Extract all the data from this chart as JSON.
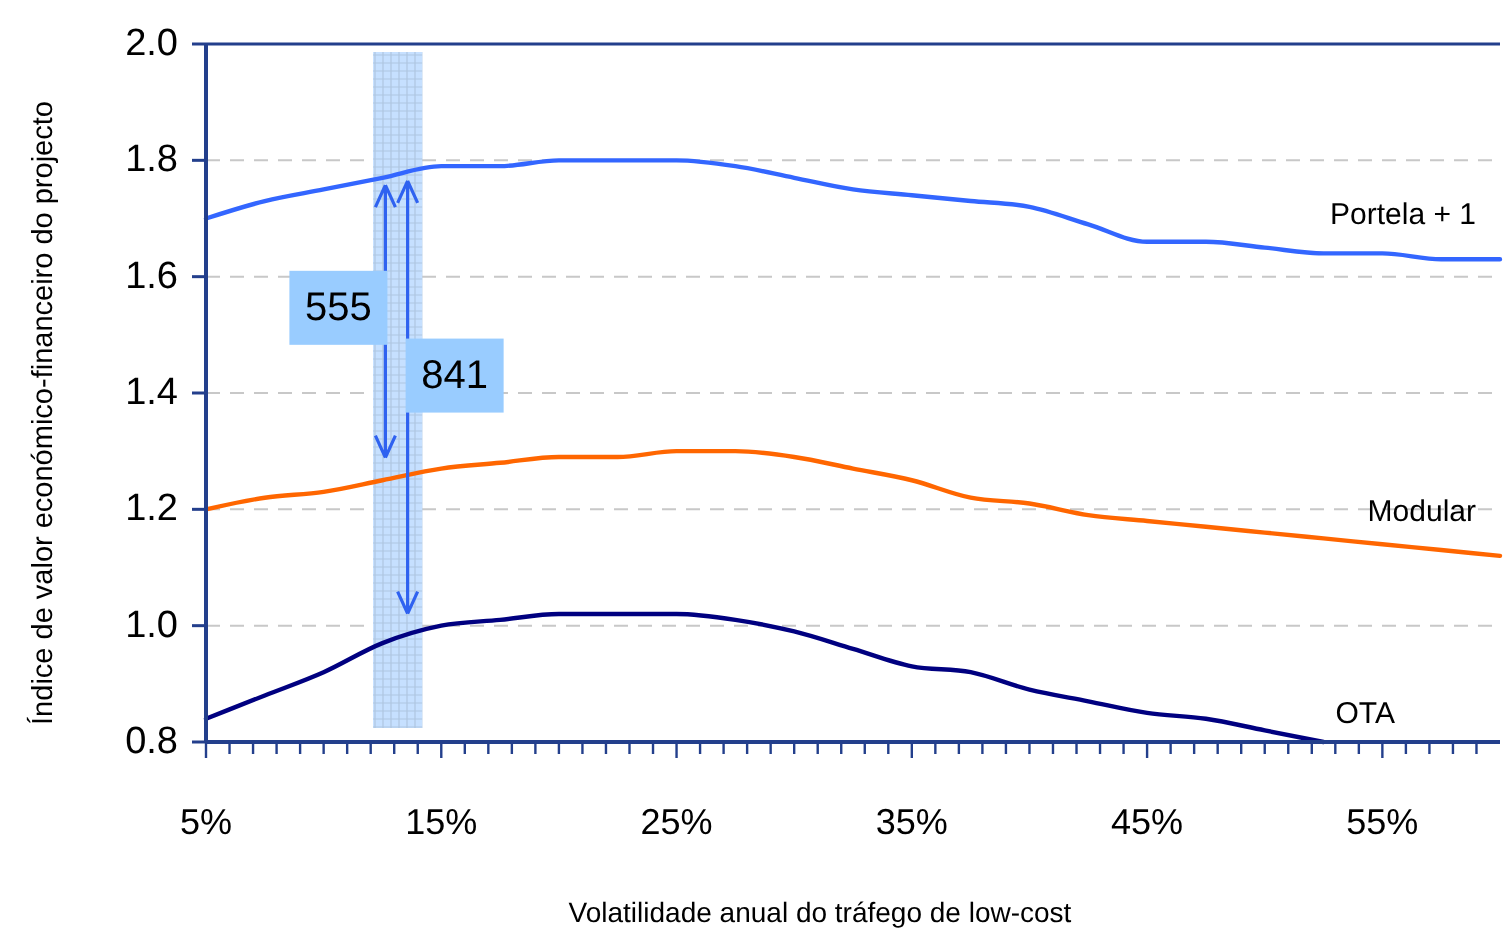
{
  "chart_data": {
    "type": "line",
    "xlabel": "Volatilidade anual do tráfego de low-cost",
    "ylabel": "Índice de valor económico-financeiro do projecto",
    "x": [
      5,
      7.5,
      10,
      12.5,
      15,
      17.5,
      20,
      22.5,
      25,
      27.5,
      30,
      32.5,
      35,
      37.5,
      40,
      42.5,
      45,
      47.5,
      50,
      52.5,
      55,
      57.5,
      60
    ],
    "series": [
      {
        "name": "Portela + 1",
        "color": "#3366ff",
        "values": [
          1.7,
          1.73,
          1.75,
          1.77,
          1.79,
          1.79,
          1.8,
          1.8,
          1.8,
          1.79,
          1.77,
          1.75,
          1.74,
          1.73,
          1.72,
          1.69,
          1.66,
          1.66,
          1.65,
          1.64,
          1.64,
          1.63,
          1.63
        ]
      },
      {
        "name": "Modular",
        "color": "#ff6600",
        "values": [
          1.2,
          1.22,
          1.23,
          1.25,
          1.27,
          1.28,
          1.29,
          1.29,
          1.3,
          1.3,
          1.29,
          1.27,
          1.25,
          1.22,
          1.21,
          1.19,
          1.18,
          1.17,
          1.16,
          1.15,
          1.14,
          1.13,
          1.12
        ]
      },
      {
        "name": "OTA",
        "color": "#000080",
        "values": [
          0.84,
          0.88,
          0.92,
          0.97,
          1.0,
          1.01,
          1.02,
          1.02,
          1.02,
          1.01,
          0.99,
          0.96,
          0.93,
          0.92,
          0.89,
          0.87,
          0.85,
          0.84,
          0.82,
          0.8,
          null,
          null,
          null
        ]
      }
    ],
    "xlim": [
      5,
      60
    ],
    "ylim": [
      0.8,
      2.0
    ],
    "xticks": [
      {
        "value": 5,
        "label": "5%"
      },
      {
        "value": 6,
        "label": null
      },
      {
        "value": 7,
        "label": null
      },
      {
        "value": 8,
        "label": null
      },
      {
        "value": 9,
        "label": null
      },
      {
        "value": 10,
        "label": null
      },
      {
        "value": 11,
        "label": null
      },
      {
        "value": 12,
        "label": null
      },
      {
        "value": 13,
        "label": null
      },
      {
        "value": 14,
        "label": null
      },
      {
        "value": 15,
        "label": "15%"
      },
      {
        "value": 16,
        "label": null
      },
      {
        "value": 17,
        "label": null
      },
      {
        "value": 18,
        "label": null
      },
      {
        "value": 19,
        "label": null
      },
      {
        "value": 20,
        "label": null
      },
      {
        "value": 21,
        "label": null
      },
      {
        "value": 22,
        "label": null
      },
      {
        "value": 23,
        "label": null
      },
      {
        "value": 24,
        "label": null
      },
      {
        "value": 25,
        "label": "25%"
      },
      {
        "value": 26,
        "label": null
      },
      {
        "value": 27,
        "label": null
      },
      {
        "value": 28,
        "label": null
      },
      {
        "value": 29,
        "label": null
      },
      {
        "value": 30,
        "label": null
      },
      {
        "value": 31,
        "label": null
      },
      {
        "value": 32,
        "label": null
      },
      {
        "value": 33,
        "label": null
      },
      {
        "value": 34,
        "label": null
      },
      {
        "value": 35,
        "label": "35%"
      },
      {
        "value": 36,
        "label": null
      },
      {
        "value": 37,
        "label": null
      },
      {
        "value": 38,
        "label": null
      },
      {
        "value": 39,
        "label": null
      },
      {
        "value": 40,
        "label": null
      },
      {
        "value": 41,
        "label": null
      },
      {
        "value": 42,
        "label": null
      },
      {
        "value": 43,
        "label": null
      },
      {
        "value": 44,
        "label": null
      },
      {
        "value": 45,
        "label": "45%"
      },
      {
        "value": 46,
        "label": null
      },
      {
        "value": 47,
        "label": null
      },
      {
        "value": 48,
        "label": null
      },
      {
        "value": 49,
        "label": null
      },
      {
        "value": 50,
        "label": null
      },
      {
        "value": 51,
        "label": null
      },
      {
        "value": 52,
        "label": null
      },
      {
        "value": 53,
        "label": null
      },
      {
        "value": 54,
        "label": null
      },
      {
        "value": 55,
        "label": "55%"
      },
      {
        "value": 56,
        "label": null
      },
      {
        "value": 57,
        "label": null
      },
      {
        "value": 58,
        "label": null
      },
      {
        "value": 59,
        "label": null
      }
    ],
    "yticks": [
      0.8,
      {
        "value": 1,
        "label": "1.0"
      },
      1.2,
      1.4,
      1.6,
      1.8,
      {
        "value": 2,
        "label": "2.0"
      }
    ],
    "grid": "y",
    "bands": [
      {
        "axis": "x",
        "from": 12.1,
        "to": 14.2,
        "color": "#c6e0ff"
      }
    ],
    "annotations": [
      "555",
      "841"
    ]
  }
}
